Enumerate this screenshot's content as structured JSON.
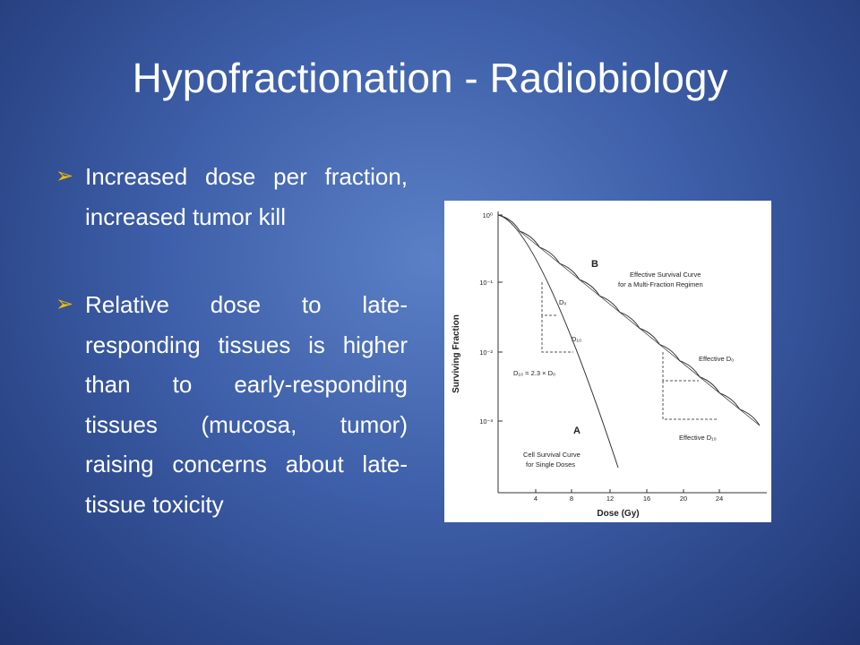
{
  "title": "Hypofractionation - Radiobiology",
  "bullets": [
    "Increased dose per fraction, increased tumor kill",
    "Relative dose to late-responding tissues is higher than to early-responding tissues (mucosa, tumor) raising concerns about late-tissue toxicity"
  ],
  "figure": {
    "y_axis_label": "Surviving Fraction",
    "x_axis_label": "Dose (Gy)",
    "x_ticks": [
      "4",
      "8",
      "12",
      "16",
      "20",
      "24"
    ],
    "y_ticks": [
      "10⁰",
      "10⁻¹",
      "10⁻²",
      "10⁻³"
    ],
    "curve_b_label": "B",
    "curve_b_caption": [
      "Effective Survival Curve",
      "for a Multi-Fraction Regimen"
    ],
    "curve_a_label": "A",
    "curve_a_caption": [
      "Cell Survival Curve",
      "for Single Doses"
    ],
    "d0": "D₀",
    "d10": "D₁₀",
    "relation": "D₁₀ = 2.3 × D₀",
    "effective_d0": "Effective D₀",
    "effective_d10": "Effective D₁₀"
  }
}
